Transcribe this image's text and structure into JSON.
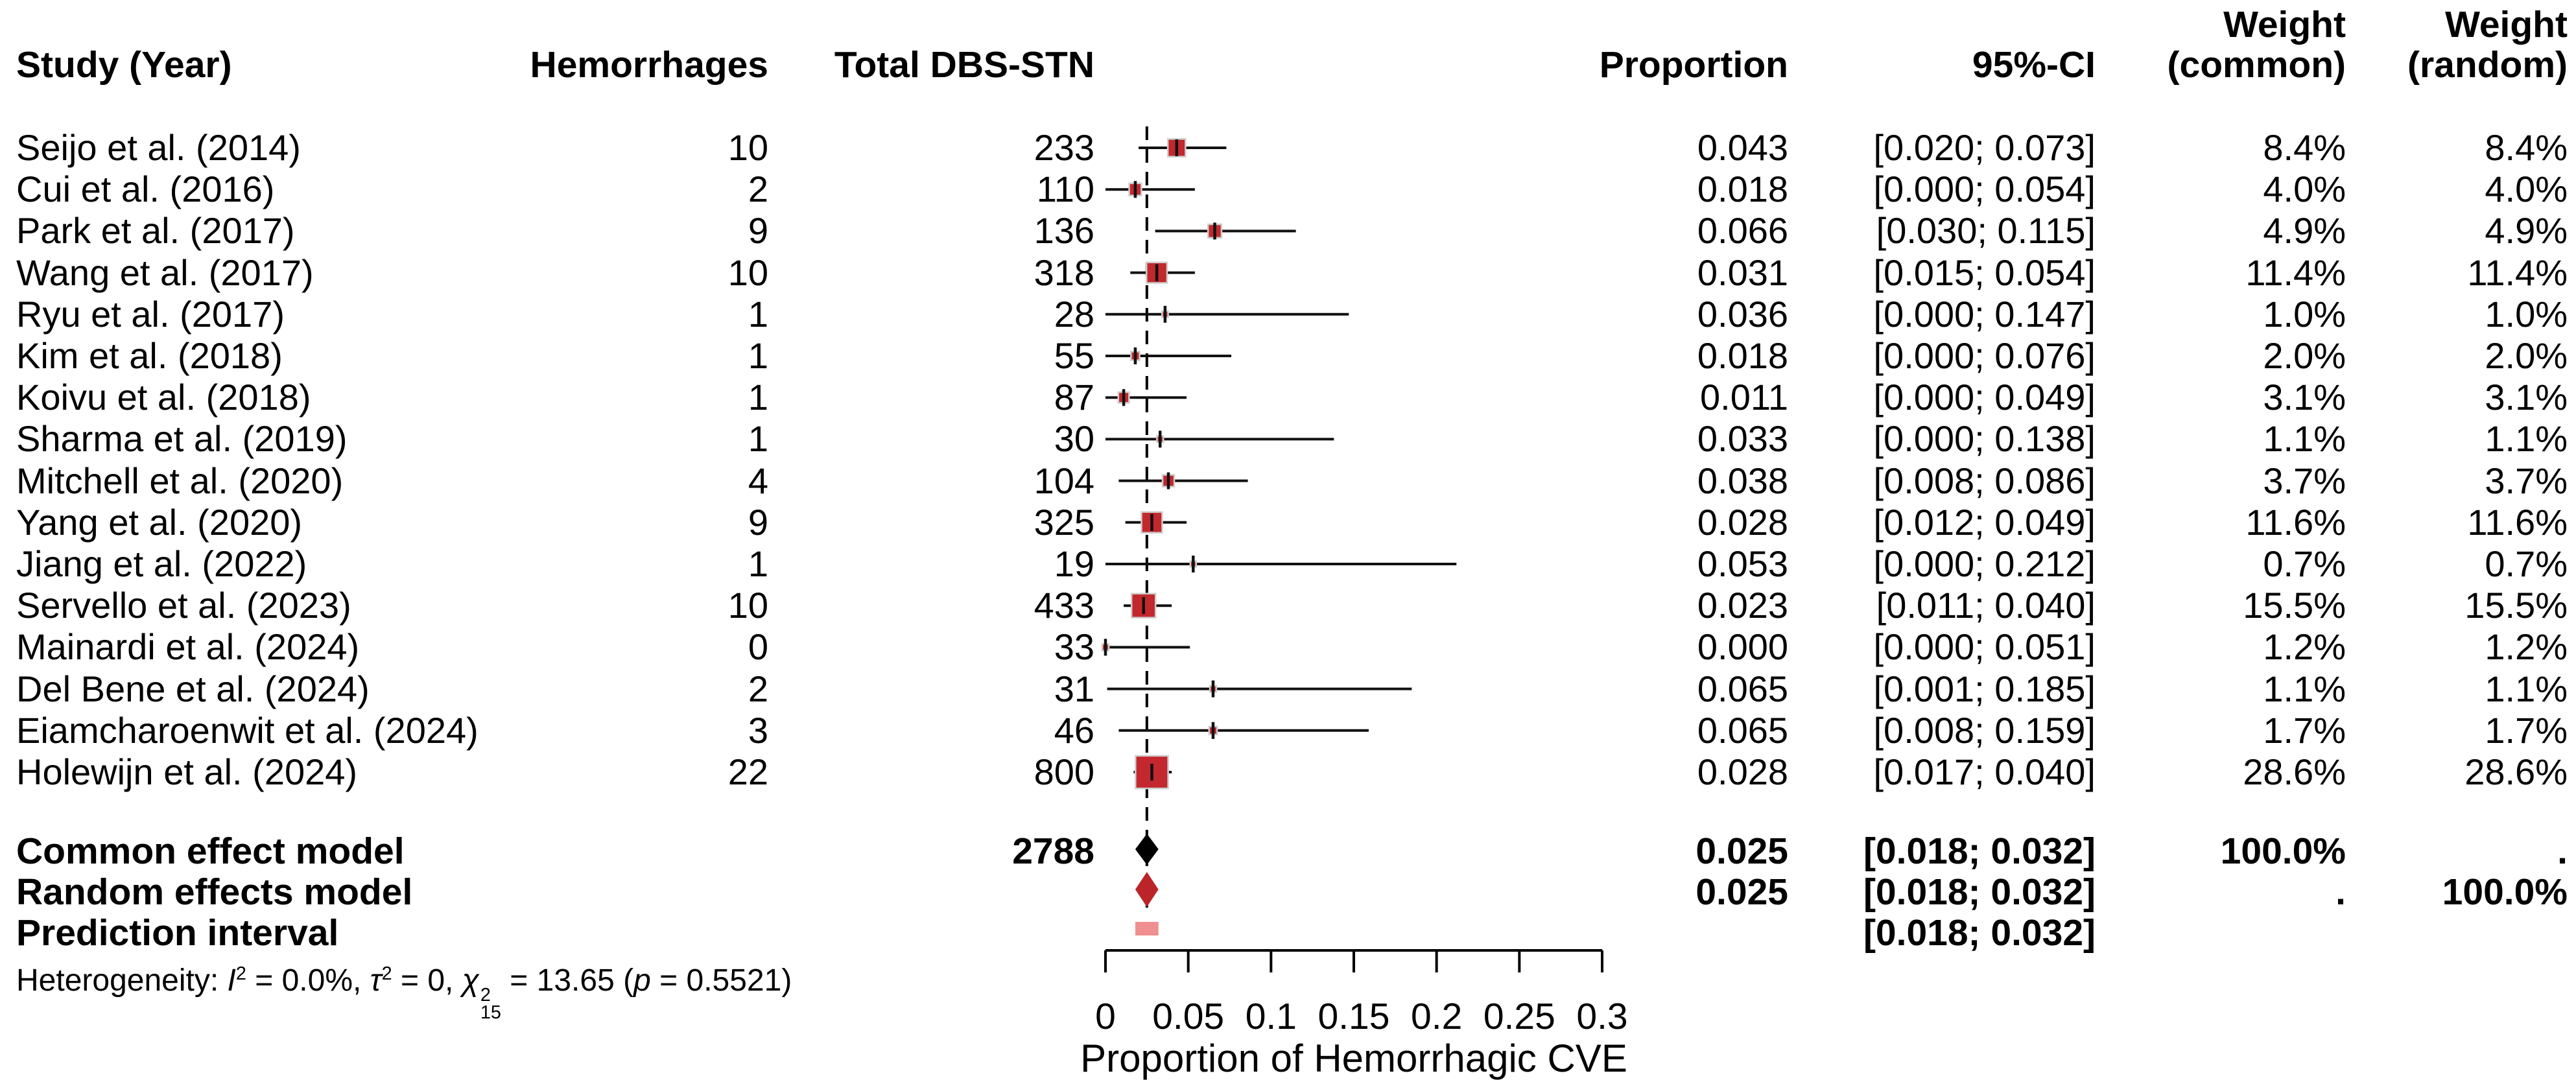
{
  "chart_data": {
    "type": "forest",
    "xlabel": "Proportion of Hemorrhagic CVE",
    "axis": {
      "min": 0,
      "max": 0.3,
      "ticks": [
        0,
        0.05,
        0.1,
        0.15,
        0.2,
        0.25,
        0.3
      ],
      "tick_labels": [
        "0",
        "0.05",
        "0.1",
        "0.15",
        "0.2",
        "0.25",
        "0.3"
      ],
      "reference_value": 0.025
    },
    "columns": {
      "study": "Study (Year)",
      "events": "Hemorrhages",
      "total": "Total DBS-STN",
      "proportion": "Proportion",
      "ci": "95%-CI",
      "weight": "Weight",
      "weight_common_sub": "(common)",
      "weight_random_sub": "(random)"
    },
    "studies": [
      {
        "name": "Seijo et al. (2014)",
        "events": "10",
        "total": "233",
        "proportion": "0.043",
        "estimate": 0.043,
        "ci": "[0.020; 0.073]",
        "ci_lo": 0.02,
        "ci_hi": 0.073,
        "weight": 8.4,
        "weight_common": "8.4%",
        "weight_random": "8.4%"
      },
      {
        "name": "Cui et al. (2016)",
        "events": "2",
        "total": "110",
        "proportion": "0.018",
        "estimate": 0.018,
        "ci": "[0.000; 0.054]",
        "ci_lo": 0.0,
        "ci_hi": 0.054,
        "weight": 4.0,
        "weight_common": "4.0%",
        "weight_random": "4.0%"
      },
      {
        "name": "Park et al. (2017)",
        "events": "9",
        "total": "136",
        "proportion": "0.066",
        "estimate": 0.066,
        "ci": "[0.030; 0.115]",
        "ci_lo": 0.03,
        "ci_hi": 0.115,
        "weight": 4.9,
        "weight_common": "4.9%",
        "weight_random": "4.9%"
      },
      {
        "name": "Wang et al. (2017)",
        "events": "10",
        "total": "318",
        "proportion": "0.031",
        "estimate": 0.031,
        "ci": "[0.015; 0.054]",
        "ci_lo": 0.015,
        "ci_hi": 0.054,
        "weight": 11.4,
        "weight_common": "11.4%",
        "weight_random": "11.4%"
      },
      {
        "name": "Ryu et al. (2017)",
        "events": "1",
        "total": "28",
        "proportion": "0.036",
        "estimate": 0.036,
        "ci": "[0.000; 0.147]",
        "ci_lo": 0.0,
        "ci_hi": 0.147,
        "weight": 1.0,
        "weight_common": "1.0%",
        "weight_random": "1.0%"
      },
      {
        "name": "Kim et al. (2018)",
        "events": "1",
        "total": "55",
        "proportion": "0.018",
        "estimate": 0.018,
        "ci": "[0.000; 0.076]",
        "ci_lo": 0.0,
        "ci_hi": 0.076,
        "weight": 2.0,
        "weight_common": "2.0%",
        "weight_random": "2.0%"
      },
      {
        "name": "Koivu et al. (2018)",
        "events": "1",
        "total": "87",
        "proportion": "0.011",
        "estimate": 0.011,
        "ci": "[0.000; 0.049]",
        "ci_lo": 0.0,
        "ci_hi": 0.049,
        "weight": 3.1,
        "weight_common": "3.1%",
        "weight_random": "3.1%"
      },
      {
        "name": "Sharma et al. (2019)",
        "events": "1",
        "total": "30",
        "proportion": "0.033",
        "estimate": 0.033,
        "ci": "[0.000; 0.138]",
        "ci_lo": 0.0,
        "ci_hi": 0.138,
        "weight": 1.1,
        "weight_common": "1.1%",
        "weight_random": "1.1%"
      },
      {
        "name": "Mitchell et al. (2020)",
        "events": "4",
        "total": "104",
        "proportion": "0.038",
        "estimate": 0.038,
        "ci": "[0.008; 0.086]",
        "ci_lo": 0.008,
        "ci_hi": 0.086,
        "weight": 3.7,
        "weight_common": "3.7%",
        "weight_random": "3.7%"
      },
      {
        "name": "Yang et al. (2020)",
        "events": "9",
        "total": "325",
        "proportion": "0.028",
        "estimate": 0.028,
        "ci": "[0.012; 0.049]",
        "ci_lo": 0.012,
        "ci_hi": 0.049,
        "weight": 11.6,
        "weight_common": "11.6%",
        "weight_random": "11.6%"
      },
      {
        "name": "Jiang et al. (2022)",
        "events": "1",
        "total": "19",
        "proportion": "0.053",
        "estimate": 0.053,
        "ci": "[0.000; 0.212]",
        "ci_lo": 0.0,
        "ci_hi": 0.212,
        "weight": 0.7,
        "weight_common": "0.7%",
        "weight_random": "0.7%"
      },
      {
        "name": "Servello et al. (2023)",
        "events": "10",
        "total": "433",
        "proportion": "0.023",
        "estimate": 0.023,
        "ci": "[0.011; 0.040]",
        "ci_lo": 0.011,
        "ci_hi": 0.04,
        "weight": 15.5,
        "weight_common": "15.5%",
        "weight_random": "15.5%"
      },
      {
        "name": "Mainardi et al. (2024)",
        "events": "0",
        "total": "33",
        "proportion": "0.000",
        "estimate": 0.0,
        "ci": "[0.000; 0.051]",
        "ci_lo": 0.0,
        "ci_hi": 0.051,
        "weight": 1.2,
        "weight_common": "1.2%",
        "weight_random": "1.2%"
      },
      {
        "name": "Del Bene et al. (2024)",
        "events": "2",
        "total": "31",
        "proportion": "0.065",
        "estimate": 0.065,
        "ci": "[0.001; 0.185]",
        "ci_lo": 0.001,
        "ci_hi": 0.185,
        "weight": 1.1,
        "weight_common": "1.1%",
        "weight_random": "1.1%"
      },
      {
        "name": "Eiamcharoenwit et al. (2024)",
        "events": "3",
        "total": "46",
        "proportion": "0.065",
        "estimate": 0.065,
        "ci": "[0.008; 0.159]",
        "ci_lo": 0.008,
        "ci_hi": 0.159,
        "weight": 1.7,
        "weight_common": "1.7%",
        "weight_random": "1.7%"
      },
      {
        "name": "Holewijn et al. (2024)",
        "events": "22",
        "total": "800",
        "proportion": "0.028",
        "estimate": 0.028,
        "ci": "[0.017; 0.040]",
        "ci_lo": 0.017,
        "ci_hi": 0.04,
        "weight": 28.6,
        "weight_common": "28.6%",
        "weight_random": "28.6%"
      }
    ],
    "summary": {
      "common": {
        "label": "Common effect model",
        "total": "2788",
        "proportion": "0.025",
        "estimate": 0.025,
        "ci": "[0.018; 0.032]",
        "ci_lo": 0.018,
        "ci_hi": 0.032,
        "weight_common": "100.0%",
        "weight_random": "."
      },
      "random": {
        "label": "Random effects model",
        "proportion": "0.025",
        "estimate": 0.025,
        "ci": "[0.018; 0.032]",
        "ci_lo": 0.018,
        "ci_hi": 0.032,
        "weight_common": ".",
        "weight_random": "100.0%"
      },
      "prediction": {
        "label": "Prediction interval",
        "ci": "[0.018; 0.032]",
        "ci_lo": 0.018,
        "ci_hi": 0.032
      }
    },
    "heterogeneity": {
      "parts": [
        {
          "text": "Heterogeneity: "
        },
        {
          "base": "I",
          "italic": true,
          "sup": "2"
        },
        {
          "text": " = 0.0%, "
        },
        {
          "base": "τ",
          "italic": true,
          "sup": "2"
        },
        {
          "text": " = 0, "
        },
        {
          "base": "χ",
          "italic": true,
          "sup": "2",
          "sub": "15"
        },
        {
          "text": " = 13.65 ("
        },
        {
          "text": "p",
          "italic": true
        },
        {
          "text": " = 0.5521)"
        }
      ]
    },
    "colors": {
      "square": "#c2282d",
      "square_border": "#cfcfcf",
      "ci_line": "#111111",
      "estimate_tick": "#111111",
      "diamond_common": "#000000",
      "diamond_random": "#bb2529",
      "prediction_bar": "#f08f8f",
      "reference_line": "#000000",
      "text": "#000000",
      "background": "#ffffff"
    }
  }
}
